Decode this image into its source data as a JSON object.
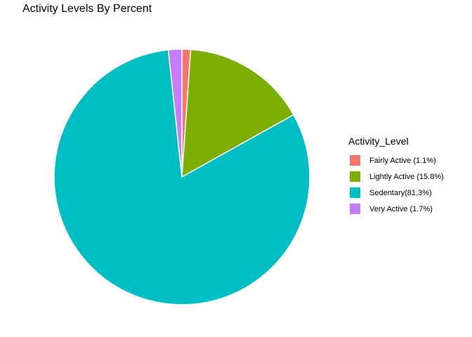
{
  "chart_data": {
    "type": "pie",
    "title": "Activity Levels By Percent",
    "legend_title": "Activity_Level",
    "legend_position": "right",
    "start_angle_deg": 0,
    "direction": "clockwise",
    "slices": [
      {
        "label": "Fairly Active (1.1%)",
        "value": 1.1,
        "color": "#F8766D"
      },
      {
        "label": "Lightly Active (15.8%)",
        "value": 15.8,
        "color": "#7CAE00"
      },
      {
        "label": "Sedentary(81.3%)",
        "value": 81.3,
        "color": "#00BFC4"
      },
      {
        "label": "Very Active (1.7%)",
        "value": 1.7,
        "color": "#C77CFF"
      }
    ]
  }
}
